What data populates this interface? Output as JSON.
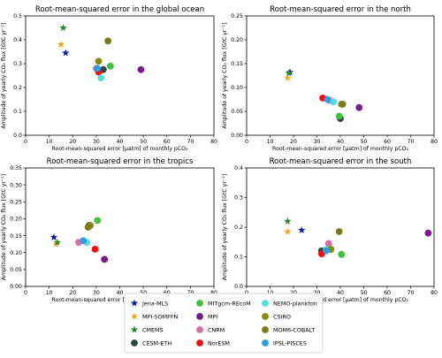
{
  "models": [
    {
      "name": "Jena-MLS",
      "color": "#0b1cb0",
      "marker": "star"
    },
    {
      "name": "MPI-SOMFFN",
      "color": "#f5a623",
      "marker": "star"
    },
    {
      "name": "CMEMS",
      "color": "#2a8a2a",
      "marker": "star"
    },
    {
      "name": "CESM-ETH",
      "color": "#2e4a42",
      "marker": "circle"
    },
    {
      "name": "MITgcm-REcoM",
      "color": "#3cc43c",
      "marker": "circle"
    },
    {
      "name": "MPI",
      "color": "#7b1a8c",
      "marker": "circle"
    },
    {
      "name": "CNRM",
      "color": "#d6709e",
      "marker": "circle"
    },
    {
      "name": "NorESM",
      "color": "#ee1111",
      "marker": "circle"
    },
    {
      "name": "NEMO-plankton",
      "color": "#55dede",
      "marker": "circle"
    },
    {
      "name": "CSIRO",
      "color": "#8a8a12",
      "marker": "circle"
    },
    {
      "name": "MOM6-COBALT",
      "color": "#7a7a1a",
      "marker": "circle"
    },
    {
      "name": "IPSL-PISCES",
      "color": "#2e9ee8",
      "marker": "circle"
    }
  ],
  "chart_data": [
    {
      "type": "scatter",
      "title": "Root-mean-squared error in the global ocean",
      "xlabel": "Root-mean-squared error [µatm] of monthly pCO₂",
      "ylabel": "Amplitude of yearly CO₂ flux [GtC yr⁻¹]",
      "xlim": [
        0,
        80
      ],
      "ylim": [
        0,
        0.5
      ],
      "xticks": [
        0,
        10,
        20,
        30,
        40,
        50,
        60,
        70,
        80
      ],
      "yticks": [
        0.0,
        0.1,
        0.2,
        0.3,
        0.4,
        0.5
      ],
      "points": [
        {
          "model": "Jena-MLS",
          "x": 17,
          "y": 0.345
        },
        {
          "model": "MPI-SOMFFN",
          "x": 15,
          "y": 0.38
        },
        {
          "model": "CMEMS",
          "x": 16,
          "y": 0.45
        },
        {
          "model": "CESM-ETH",
          "x": 33,
          "y": 0.275
        },
        {
          "model": "MITgcm-REcoM",
          "x": 36,
          "y": 0.29
        },
        {
          "model": "MPI",
          "x": 49,
          "y": 0.275
        },
        {
          "model": "CNRM",
          "x": 30,
          "y": 0.28
        },
        {
          "model": "NorESM",
          "x": 31,
          "y": 0.265
        },
        {
          "model": "NEMO-plankton",
          "x": 32,
          "y": 0.24
        },
        {
          "model": "CSIRO",
          "x": 31,
          "y": 0.31
        },
        {
          "model": "MOM6-COBALT",
          "x": 35,
          "y": 0.395
        },
        {
          "model": "IPSL-PISCES",
          "x": 30.5,
          "y": 0.28
        }
      ]
    },
    {
      "type": "scatter",
      "title": "Root-mean-squared error in the north",
      "xlabel": "Root-mean-squared error [µatm] of monthly pCO₂",
      "ylabel": "Amplitude of yearly CO₂ flux [GtC yr⁻¹]",
      "xlim": [
        0,
        80
      ],
      "ylim": [
        0,
        0.25
      ],
      "xticks": [
        0,
        10,
        20,
        30,
        40,
        50,
        60,
        70,
        80
      ],
      "yticks": [
        0.0,
        0.05,
        0.1,
        0.15,
        0.2,
        0.25
      ],
      "points": [
        {
          "model": "Jena-MLS",
          "x": 18.5,
          "y": 0.132
        },
        {
          "model": "MPI-SOMFFN",
          "x": 17.5,
          "y": 0.12
        },
        {
          "model": "CMEMS",
          "x": 18,
          "y": 0.13
        },
        {
          "model": "CESM-ETH",
          "x": 40,
          "y": 0.035
        },
        {
          "model": "MITgcm-REcoM",
          "x": 39.5,
          "y": 0.04
        },
        {
          "model": "MPI",
          "x": 48,
          "y": 0.058
        },
        {
          "model": "CNRM",
          "x": 35.5,
          "y": 0.073
        },
        {
          "model": "NorESM",
          "x": 32.5,
          "y": 0.078
        },
        {
          "model": "NEMO-plankton",
          "x": 37,
          "y": 0.07
        },
        {
          "model": "CSIRO",
          "x": 40.5,
          "y": 0.065
        },
        {
          "model": "MOM6-COBALT",
          "x": 41,
          "y": 0.065
        },
        {
          "model": "IPSL-PISCES",
          "x": 34.5,
          "y": 0.075
        }
      ]
    },
    {
      "type": "scatter",
      "title": "Root-mean-squared error in the tropics",
      "xlabel": "Root-mean-squared error [µatm] of monthly pCO₂",
      "ylabel": "Amplitude of yearly CO₂ flux [GtC yr⁻¹]",
      "xlim": [
        0,
        80
      ],
      "ylim": [
        0,
        0.35
      ],
      "xticks": [
        0,
        10,
        20,
        30,
        40,
        50,
        60,
        70,
        80
      ],
      "yticks": [
        0.0,
        0.05,
        0.1,
        0.15,
        0.2,
        0.25,
        0.3,
        0.35
      ],
      "points": [
        {
          "model": "Jena-MLS",
          "x": 12,
          "y": 0.145
        },
        {
          "model": "MPI-SOMFFN",
          "x": 13,
          "y": 0.125
        },
        {
          "model": "CMEMS",
          "x": 13.5,
          "y": 0.13
        },
        {
          "model": "CESM-ETH",
          "x": 27,
          "y": 0.18
        },
        {
          "model": "MITgcm-REcoM",
          "x": 30.5,
          "y": 0.195
        },
        {
          "model": "MPI",
          "x": 33.5,
          "y": 0.08
        },
        {
          "model": "CNRM",
          "x": 22.5,
          "y": 0.13
        },
        {
          "model": "NorESM",
          "x": 29.5,
          "y": 0.11
        },
        {
          "model": "NEMO-plankton",
          "x": 26,
          "y": 0.13
        },
        {
          "model": "CSIRO",
          "x": 27.5,
          "y": 0.18
        },
        {
          "model": "MOM6-COBALT",
          "x": 26.5,
          "y": 0.175
        },
        {
          "model": "IPSL-PISCES",
          "x": 24.5,
          "y": 0.135
        }
      ]
    },
    {
      "type": "scatter",
      "title": "Root-mean-squared error in the south",
      "xlabel": "Root-mean-squared error [µatm] of monthly pCO₂",
      "ylabel": "Amplitude of yearly CO₂ flux [GtC yr⁻¹]",
      "xlim": [
        0,
        80
      ],
      "ylim": [
        0,
        0.4
      ],
      "xticks": [
        0,
        10,
        20,
        30,
        40,
        50,
        60,
        70,
        80
      ],
      "yticks": [
        0.0,
        0.1,
        0.2,
        0.3,
        0.4
      ],
      "points": [
        {
          "model": "Jena-MLS",
          "x": 23.5,
          "y": 0.19
        },
        {
          "model": "MPI-SOMFFN",
          "x": 17.5,
          "y": 0.185
        },
        {
          "model": "CMEMS",
          "x": 17.5,
          "y": 0.22
        },
        {
          "model": "CESM-ETH",
          "x": 32,
          "y": 0.12
        },
        {
          "model": "MITgcm-REcoM",
          "x": 40.5,
          "y": 0.108
        },
        {
          "model": "MPI",
          "x": 77.5,
          "y": 0.18
        },
        {
          "model": "CNRM",
          "x": 35,
          "y": 0.145
        },
        {
          "model": "NorESM",
          "x": 32,
          "y": 0.11
        },
        {
          "model": "NEMO-plankton",
          "x": 34,
          "y": 0.125
        },
        {
          "model": "CSIRO",
          "x": 36,
          "y": 0.125
        },
        {
          "model": "MOM6-COBALT",
          "x": 39.5,
          "y": 0.185
        },
        {
          "model": "IPSL-PISCES",
          "x": 34,
          "y": 0.12
        }
      ]
    }
  ]
}
